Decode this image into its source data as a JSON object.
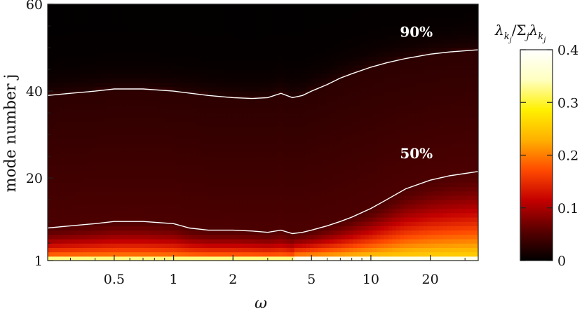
{
  "chart_data": {
    "type": "heatmap",
    "xlabel": "ω",
    "ylabel": "mode number j",
    "x_scale": "log",
    "xlim": [
      0.23,
      35
    ],
    "ylim": [
      1,
      60
    ],
    "x_ticks": [
      {
        "value": 0.5,
        "label": "0.5"
      },
      {
        "value": 1,
        "label": "1"
      },
      {
        "value": 2,
        "label": "2"
      },
      {
        "value": 5,
        "label": "5"
      },
      {
        "value": 10,
        "label": "10"
      },
      {
        "value": 20,
        "label": "20"
      }
    ],
    "y_ticks": [
      {
        "value": 1,
        "label": "1"
      },
      {
        "value": 20,
        "label": "20"
      },
      {
        "value": 40,
        "label": "40"
      },
      {
        "value": 60,
        "label": "60"
      }
    ],
    "colorbar": {
      "title": "λ_{k_j}/Σ_j λ_{k_j}",
      "title_base": "λ",
      "title_sub": "k",
      "title_subsub": "j",
      "title_sigma": "/Σ",
      "range": [
        0,
        0.4
      ],
      "ticks": [
        {
          "value": 0,
          "label": "0"
        },
        {
          "value": 0.1,
          "label": "0.1"
        },
        {
          "value": 0.2,
          "label": "0.2"
        },
        {
          "value": 0.3,
          "label": "0.3"
        },
        {
          "value": 0.4,
          "label": "0.4"
        }
      ],
      "colormap": [
        "#000000",
        "#5a0000",
        "#c40000",
        "#ff4a00",
        "#ffb000",
        "#fff000",
        "#ffffc0",
        "#ffffff"
      ]
    },
    "series": [
      {
        "name": "90%",
        "x": [
          0.23,
          0.3,
          0.4,
          0.5,
          0.7,
          1.0,
          1.5,
          2.0,
          2.5,
          3.0,
          3.5,
          4.0,
          4.5,
          5.0,
          6.0,
          7.0,
          8.0,
          10,
          12,
          15,
          20,
          25,
          35
        ],
        "values": [
          39,
          39.5,
          40,
          40.5,
          40.5,
          40,
          39,
          38.5,
          38.3,
          38.5,
          39.5,
          38.5,
          39,
          40,
          41.5,
          43,
          44,
          45.5,
          46.5,
          47.5,
          48.5,
          49,
          49.5
        ]
      },
      {
        "name": "50%",
        "x": [
          0.23,
          0.3,
          0.4,
          0.5,
          0.7,
          1.0,
          1.2,
          1.5,
          2.0,
          2.5,
          3.0,
          3.5,
          4.0,
          4.5,
          5.0,
          6.0,
          7.0,
          8.0,
          10,
          12,
          15,
          20,
          25,
          35
        ],
        "values": [
          8.5,
          9,
          9.5,
          10,
          10,
          9.5,
          8.5,
          8,
          8,
          7.8,
          7.5,
          8,
          7.2,
          7.5,
          8,
          9,
          10,
          11,
          13,
          15,
          17.5,
          19.5,
          20.5,
          21.5
        ]
      }
    ],
    "annotations": [
      {
        "text": "90%",
        "x": 17,
        "y": 52.5
      },
      {
        "text": "50%",
        "x": 17,
        "y": 24.5
      }
    ]
  }
}
